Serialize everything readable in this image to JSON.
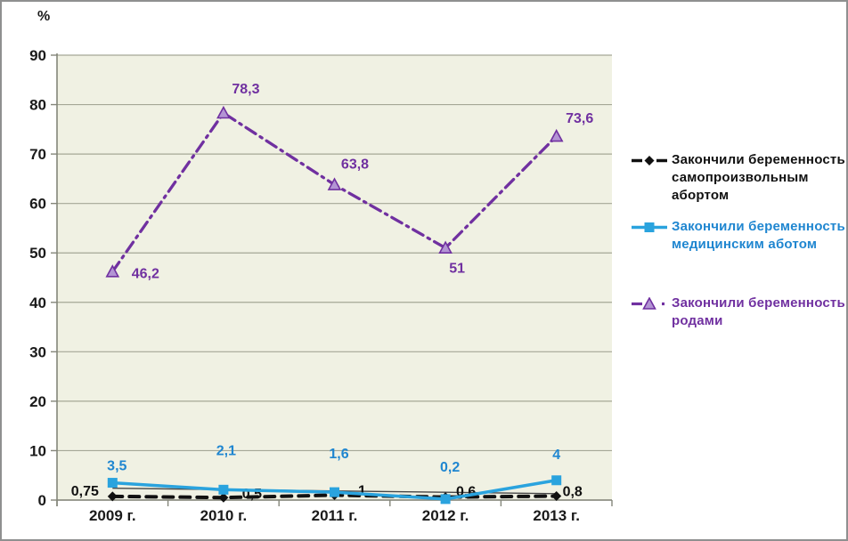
{
  "frame": {
    "unit": "%"
  },
  "chart_data": {
    "type": "line",
    "title": "",
    "unit": "%",
    "categories": [
      "2009 г.",
      "2010 г.",
      "2011 г.",
      "2012 г.",
      "2013 г."
    ],
    "ylim": [
      0,
      90
    ],
    "ytick_step": 10,
    "y_tick_labels": [
      "0",
      "10",
      "20",
      "30",
      "40",
      "50",
      "60",
      "70",
      "80",
      "90"
    ],
    "grid": true,
    "legend_position": "right",
    "colors": {
      "plot_bg": "#f0f1e3",
      "grid": "#a5a796",
      "axis": "#84867a",
      "tick_text": "#1a1a1a"
    },
    "thin_trend_line": {
      "endpoint_values": [
        2.4,
        1.3
      ],
      "color": "#474747",
      "width": 1.4
    },
    "series": [
      {
        "id": "spontaneous-abortion",
        "name": "Закончили беременность самопроизвольным абортом",
        "values": [
          0.75,
          0.5,
          1,
          0.6,
          0.8
        ],
        "point_labels": [
          "0,75",
          "0,5",
          "1",
          "0,6",
          "0,8"
        ],
        "color": "#111111",
        "label_color": "#111111",
        "marker": "diamond",
        "line_style": "dashed",
        "dasharray": "11 8",
        "stroke_width": 4,
        "label_offsets": [
          [
            -31,
            -6
          ],
          [
            32,
            -4
          ],
          [
            31,
            -5
          ],
          [
            23,
            -6
          ],
          [
            18,
            -5
          ]
        ]
      },
      {
        "id": "medical-abortion",
        "name": "Закончили беременность медицинским аботом",
        "values": [
          3.5,
          2.1,
          1.6,
          0.2,
          4
        ],
        "point_labels": [
          "3,5",
          "2,1",
          "1,6",
          "0,2",
          "4"
        ],
        "color": "#2aa3de",
        "label_color": "#1f86d0",
        "marker": "square",
        "line_style": "solid",
        "dasharray": "",
        "stroke_width": 3.5,
        "label_offsets": [
          [
            5,
            -19
          ],
          [
            3,
            -44
          ],
          [
            5,
            -43
          ],
          [
            5,
            -36
          ],
          [
            0,
            -29
          ]
        ]
      },
      {
        "id": "births",
        "name": "Закончили беременность родами",
        "values": [
          46.2,
          78.3,
          63.8,
          51,
          73.6
        ],
        "point_labels": [
          "46,2",
          "78,3",
          "63,8",
          "51",
          "73,6"
        ],
        "color": "#7030a0",
        "label_color": "#7030a0",
        "marker": "triangle",
        "marker_fill": "#b394d4",
        "line_style": "dash-dot",
        "dasharray": "13 6 2.5 6",
        "stroke_width": 3.3,
        "label_offsets": [
          [
            37,
            2
          ],
          [
            25,
            -27
          ],
          [
            23,
            -23
          ],
          [
            13,
            23
          ],
          [
            26,
            -20
          ]
        ]
      }
    ]
  }
}
